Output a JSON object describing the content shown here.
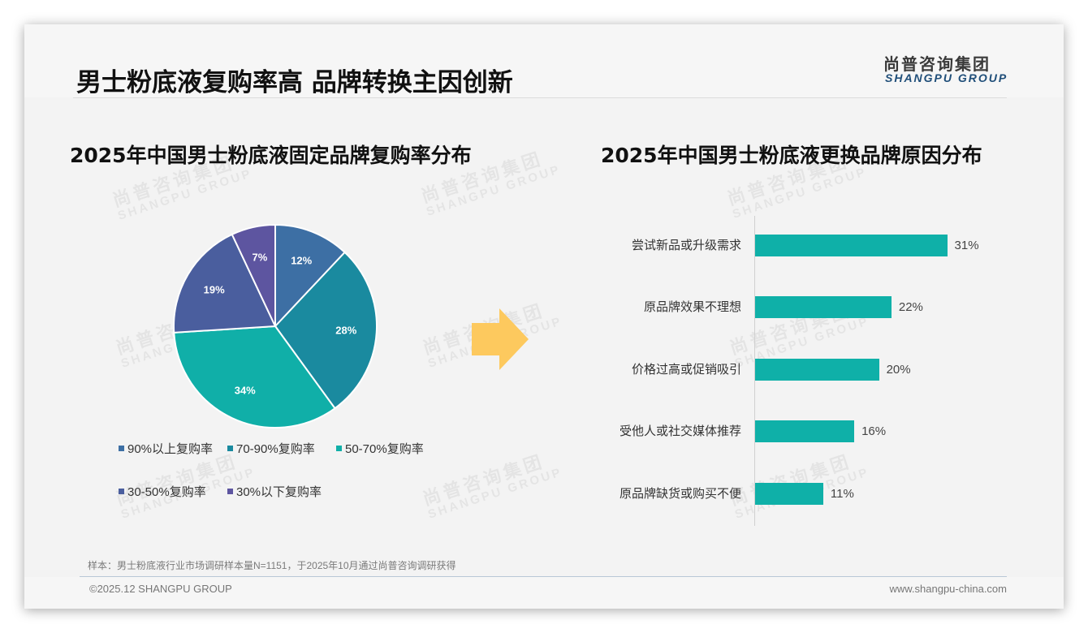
{
  "header": {
    "title": "男士粉底液复购率高 品牌转换主因创新",
    "logo_cn": "尚普咨询集团",
    "logo_en": "SHANGPU GROUP"
  },
  "watermark": {
    "cn": "尚普咨询集团",
    "en": "SHANGPU GROUP"
  },
  "colors": {
    "bar": "#0fb0a8",
    "arrow": "#fdc95e",
    "logo_en": "#1f4e79"
  },
  "chart_data": [
    {
      "type": "pie",
      "title": "2025年中国男士粉底液固定品牌复购率分布",
      "categories": [
        "90%以上复购率",
        "70-90%复购率",
        "50-70%复购率",
        "30-50%复购率",
        "30%以下复购率"
      ],
      "values": [
        12,
        28,
        34,
        19,
        7
      ],
      "labels": [
        "12%",
        "28%",
        "34%",
        "19%",
        "7%"
      ],
      "colors": [
        "#3d6fa4",
        "#1a8a9f",
        "#10afa8",
        "#4a5e9e",
        "#5d55a0"
      ],
      "start_angle": "12 o'clock, clockwise",
      "legend_position": "bottom"
    },
    {
      "type": "bar",
      "orientation": "horizontal",
      "title": "2025年中国男士粉底液更换品牌原因分布",
      "categories": [
        "尝试新品或升级需求",
        "原品牌效果不理想",
        "价格过高或促销吸引",
        "受他人或社交媒体推荐",
        "原品牌缺货或购买不便"
      ],
      "values": [
        31,
        22,
        20,
        16,
        11
      ],
      "labels": [
        "31%",
        "22%",
        "20%",
        "16%",
        "11%"
      ],
      "color": "#0fb0a8",
      "xlabel": "",
      "ylabel": "",
      "grid": false
    }
  ],
  "legend": [
    {
      "label": "90%以上复购率",
      "color": "#3d6fa4"
    },
    {
      "label": "70-90%复购率",
      "color": "#1a8a9f"
    },
    {
      "label": "50-70%复购率",
      "color": "#10afa8"
    },
    {
      "label": "30-50%复购率",
      "color": "#4a5e9e"
    },
    {
      "label": "30%以下复购率",
      "color": "#5d55a0"
    }
  ],
  "footer": {
    "note": "样本：男士粉底液行业市场调研样本量N=1151，于2025年10月通过尚普咨询调研获得",
    "copyright": "©2025.12 SHANGPU GROUP",
    "website": "www.shangpu-china.com"
  }
}
